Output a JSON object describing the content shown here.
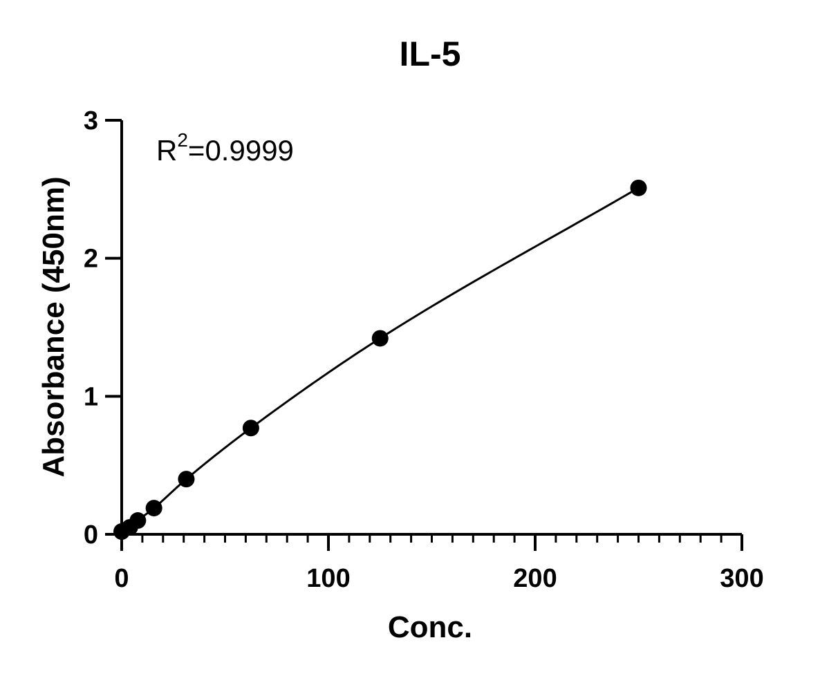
{
  "chart_data": {
    "type": "scatter",
    "title": "IL-5",
    "xlabel": "Conc.",
    "ylabel": "Absorbance (450nm)",
    "xlim": [
      0,
      300
    ],
    "ylim": [
      0,
      3
    ],
    "x_ticks": [
      "0",
      "100",
      "200",
      "300"
    ],
    "y_ticks": [
      "0",
      "1",
      "2",
      "3"
    ],
    "x_minor_tick_step": 10,
    "grid": false,
    "legend": "none",
    "annotation": {
      "prefix": "R",
      "superscript": "2",
      "suffix": "=0.9999",
      "position": "top-left"
    },
    "series": [
      {
        "x": [
          0,
          3.9,
          7.8,
          15.6,
          31.25,
          62.5,
          125,
          250
        ],
        "y": [
          0.02,
          0.05,
          0.1,
          0.19,
          0.4,
          0.77,
          1.42,
          2.51
        ],
        "marker": "circle",
        "color": "#000000",
        "fit_curve": true
      }
    ]
  }
}
